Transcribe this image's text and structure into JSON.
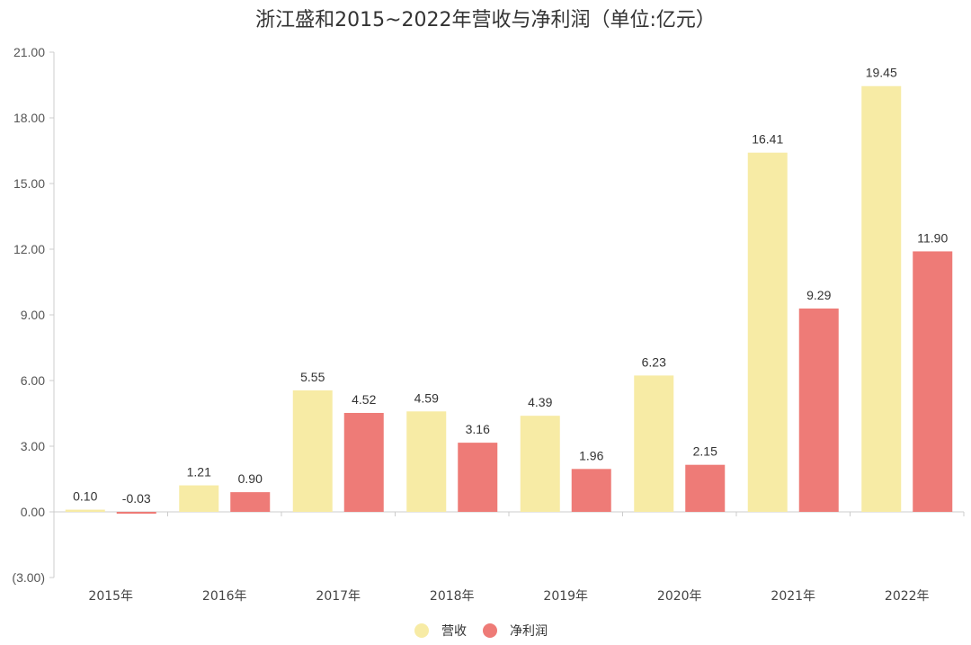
{
  "chart_data": {
    "type": "bar",
    "title": "浙江盛和2015~2022年营收与净利润（单位:亿元）",
    "categories": [
      "2015年",
      "2016年",
      "2017年",
      "2018年",
      "2019年",
      "2020年",
      "2021年",
      "2022年"
    ],
    "series": [
      {
        "name": "营收",
        "color": "#F7EBA5",
        "values": [
          0.1,
          1.21,
          5.55,
          4.59,
          4.39,
          6.23,
          16.41,
          19.45
        ],
        "labels": [
          "0.10",
          "1.21",
          "5.55",
          "4.59",
          "4.39",
          "6.23",
          "16.41",
          "19.45"
        ]
      },
      {
        "name": "净利润",
        "color": "#EE7B77",
        "values": [
          -0.03,
          0.9,
          4.52,
          3.16,
          1.96,
          2.15,
          9.29,
          11.9
        ],
        "labels": [
          "-0.03",
          "0.90",
          "4.52",
          "3.16",
          "1.96",
          "2.15",
          "9.29",
          "11.90"
        ]
      }
    ],
    "ylim": [
      -3,
      21
    ],
    "yticks": [
      -3,
      0,
      3,
      6,
      9,
      12,
      15,
      18,
      21
    ],
    "ytick_labels": [
      "(3.00)",
      "0.00",
      "3.00",
      "6.00",
      "9.00",
      "12.00",
      "15.00",
      "18.00",
      "21.00"
    ],
    "xlabel": "",
    "ylabel": "",
    "grid": false,
    "legend_position": "bottom-center"
  }
}
